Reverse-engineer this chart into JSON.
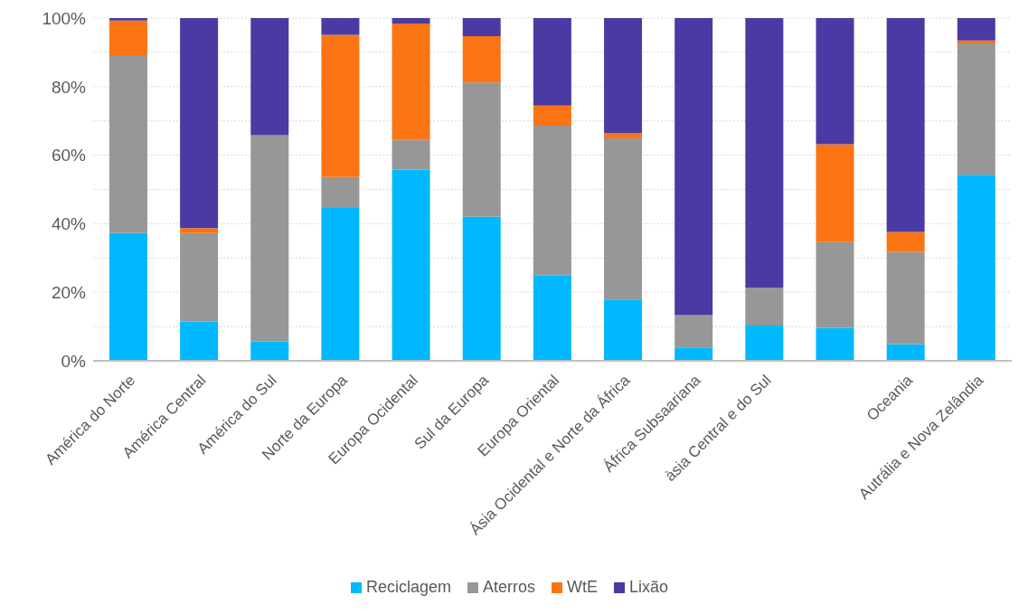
{
  "chart_data": {
    "type": "bar",
    "stacked": true,
    "categories": [
      "América do Norte",
      "América Central",
      "América do Sul",
      "Norte da Europa",
      "Europa Ocidental",
      "Sul da Europa",
      "Europa Oriental",
      "Ásia Ocidental e Norte da África",
      "África Subsaariana",
      "àsia Central e do Sul",
      null,
      "Oceania",
      "Autrália e Nova Zelândia"
    ],
    "series": [
      {
        "name": "Reciclagem",
        "color": "#00b8ff",
        "values": [
          37.3,
          11.5,
          5.7,
          44.6,
          55.8,
          42.0,
          25.0,
          17.9,
          3.9,
          10.3,
          9.6,
          4.8,
          54.3
        ]
      },
      {
        "name": "Aterros",
        "color": "#979797",
        "values": [
          51.9,
          25.8,
          60.1,
          9.0,
          8.8,
          39.2,
          43.6,
          47.0,
          9.4,
          11.0,
          25.0,
          26.9,
          38.3
        ]
      },
      {
        "name": "WtE",
        "color": "#fb7414",
        "values": [
          10.1,
          1.4,
          0,
          41.5,
          33.8,
          13.5,
          5.9,
          1.6,
          0,
          0,
          28.6,
          5.9,
          0.9
        ]
      },
      {
        "name": "Lixão",
        "color": "#4a3aa3",
        "values": [
          0.7,
          61.3,
          34.2,
          4.9,
          1.6,
          5.3,
          25.5,
          33.5,
          86.7,
          78.7,
          36.8,
          62.4,
          6.5
        ]
      }
    ],
    "ylim": [
      0,
      100
    ],
    "yticks": [
      {
        "value": 0,
        "label": "0%"
      },
      {
        "value": 10,
        "label": null
      },
      {
        "value": 20,
        "label": "20%"
      },
      {
        "value": 30,
        "label": null
      },
      {
        "value": 40,
        "label": "40%"
      },
      {
        "value": 50,
        "label": null
      },
      {
        "value": 60,
        "label": "60%"
      },
      {
        "value": 70,
        "label": null
      },
      {
        "value": 80,
        "label": "80%"
      },
      {
        "value": 90,
        "label": null
      },
      {
        "value": 100,
        "label": "100%"
      }
    ],
    "grid": "y",
    "legend": "bottom"
  }
}
